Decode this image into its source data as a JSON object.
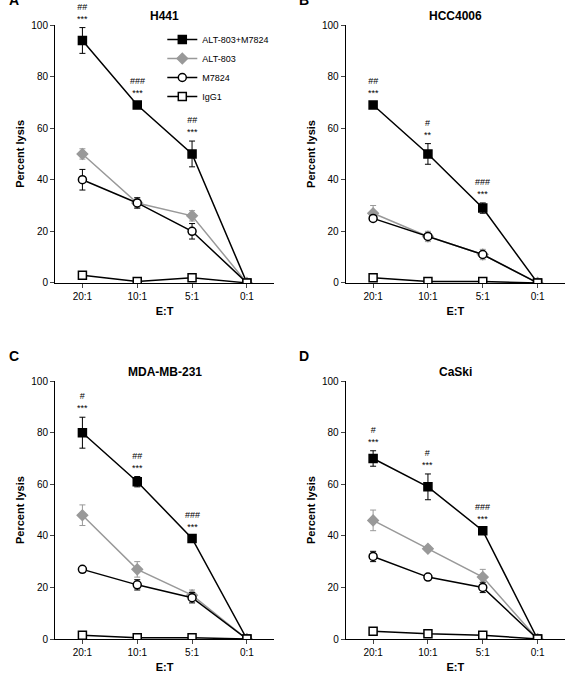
{
  "chart_data": [
    {
      "type": "line",
      "label": "A",
      "title": "H441",
      "x_label": "E:T",
      "y_label": "Percent lysis",
      "categories": [
        "20:1",
        "10:1",
        "5:1",
        "0:1"
      ],
      "ylim": [
        0,
        100
      ],
      "yticks": [
        0,
        20,
        40,
        60,
        80,
        100
      ],
      "grid": false,
      "legend": "upper right",
      "series": [
        {
          "name": "ALT-803+M7824",
          "color": "#000000",
          "marker": "square",
          "values": [
            94,
            69,
            50,
            0
          ],
          "errors": [
            5,
            1,
            5,
            0
          ]
        },
        {
          "name": "ALT-803",
          "color": "#999999",
          "marker": "diamond",
          "values": [
            50,
            31,
            26,
            0
          ],
          "errors": [
            2,
            2,
            2,
            0
          ]
        },
        {
          "name": "M7824",
          "color": "#000000",
          "marker": "circle-open",
          "values": [
            40,
            31,
            20,
            0
          ],
          "errors": [
            4,
            2,
            3,
            0
          ]
        },
        {
          "name": "IgG1",
          "color": "#000000",
          "marker": "square-open",
          "values": [
            3,
            0.5,
            2,
            0
          ],
          "errors": [
            0.5,
            0.5,
            0.5,
            0
          ]
        }
      ],
      "annotations": [
        {
          "category": "20:1",
          "text": [
            "##",
            "***"
          ]
        },
        {
          "category": "10:1",
          "text": [
            "###",
            "***"
          ]
        },
        {
          "category": "5:1",
          "text": [
            "##",
            "***"
          ]
        }
      ]
    },
    {
      "type": "line",
      "label": "B",
      "title": "HCC4006",
      "x_label": "E:T",
      "y_label": "Percent lysis",
      "categories": [
        "20:1",
        "10:1",
        "5:1",
        "0:1"
      ],
      "ylim": [
        0,
        100
      ],
      "yticks": [
        0,
        20,
        40,
        60,
        80,
        100
      ],
      "grid": false,
      "series": [
        {
          "name": "ALT-803+M7824",
          "color": "#000000",
          "marker": "square",
          "values": [
            69,
            50,
            29,
            0
          ],
          "errors": [
            1,
            4,
            2,
            0
          ]
        },
        {
          "name": "ALT-803",
          "color": "#999999",
          "marker": "diamond",
          "values": [
            27,
            18,
            11,
            0
          ],
          "errors": [
            3,
            2,
            2,
            0
          ]
        },
        {
          "name": "M7824",
          "color": "#000000",
          "marker": "circle-open",
          "values": [
            25,
            18,
            11,
            0
          ],
          "errors": [
            1,
            1,
            1,
            0
          ]
        },
        {
          "name": "IgG1",
          "color": "#000000",
          "marker": "square-open",
          "values": [
            2,
            0.5,
            0.5,
            0
          ],
          "errors": [
            0.5,
            0.5,
            0.5,
            0
          ]
        }
      ],
      "annotations": [
        {
          "category": "20:1",
          "text": [
            "##",
            "***"
          ]
        },
        {
          "category": "10:1",
          "text": [
            "#",
            "**"
          ]
        },
        {
          "category": "5:1",
          "text": [
            "###",
            "***"
          ]
        }
      ]
    },
    {
      "type": "line",
      "label": "C",
      "title": "MDA-MB-231",
      "x_label": "E:T",
      "y_label": "Percent lysis",
      "categories": [
        "20:1",
        "10:1",
        "5:1",
        "0:1"
      ],
      "ylim": [
        0,
        100
      ],
      "yticks": [
        0,
        20,
        40,
        60,
        80,
        100
      ],
      "grid": false,
      "series": [
        {
          "name": "ALT-803+M7824",
          "color": "#000000",
          "marker": "square",
          "values": [
            80,
            61,
            39,
            0
          ],
          "errors": [
            6,
            2,
            1,
            0
          ]
        },
        {
          "name": "ALT-803",
          "color": "#999999",
          "marker": "diamond",
          "values": [
            48,
            27,
            17,
            0
          ],
          "errors": [
            4,
            3,
            2,
            0
          ]
        },
        {
          "name": "M7824",
          "color": "#000000",
          "marker": "circle-open",
          "values": [
            27,
            21,
            16,
            0
          ],
          "errors": [
            1,
            2,
            2,
            0
          ]
        },
        {
          "name": "IgG1",
          "color": "#000000",
          "marker": "square-open",
          "values": [
            1.5,
            0.5,
            0.5,
            0
          ],
          "errors": [
            0.5,
            0.5,
            0.5,
            0
          ]
        }
      ],
      "annotations": [
        {
          "category": "20:1",
          "text": [
            "#",
            "***"
          ]
        },
        {
          "category": "10:1",
          "text": [
            "##",
            "***"
          ]
        },
        {
          "category": "5:1",
          "text": [
            "###",
            "***"
          ]
        }
      ]
    },
    {
      "type": "line",
      "label": "D",
      "title": "CaSki",
      "x_label": "E:T",
      "y_label": "Percent lysis",
      "categories": [
        "20:1",
        "10:1",
        "5:1",
        "0:1"
      ],
      "ylim": [
        0,
        100
      ],
      "yticks": [
        0,
        20,
        40,
        60,
        80,
        100
      ],
      "grid": false,
      "series": [
        {
          "name": "ALT-803+M7824",
          "color": "#000000",
          "marker": "square",
          "values": [
            70,
            59,
            42,
            0
          ],
          "errors": [
            3,
            5,
            1,
            0
          ]
        },
        {
          "name": "ALT-803",
          "color": "#999999",
          "marker": "diamond",
          "values": [
            46,
            35,
            24,
            0
          ],
          "errors": [
            4,
            1,
            3,
            0
          ]
        },
        {
          "name": "M7824",
          "color": "#000000",
          "marker": "circle-open",
          "values": [
            32,
            24,
            20,
            0
          ],
          "errors": [
            2,
            1,
            2,
            0
          ]
        },
        {
          "name": "IgG1",
          "color": "#000000",
          "marker": "square-open",
          "values": [
            3,
            2,
            1.5,
            0
          ],
          "errors": [
            0.5,
            0.5,
            0.5,
            0
          ]
        }
      ],
      "annotations": [
        {
          "category": "20:1",
          "text": [
            "#",
            "***"
          ]
        },
        {
          "category": "10:1",
          "text": [
            "#",
            "***"
          ]
        },
        {
          "category": "5:1",
          "text": [
            "###",
            "***"
          ]
        }
      ]
    }
  ]
}
